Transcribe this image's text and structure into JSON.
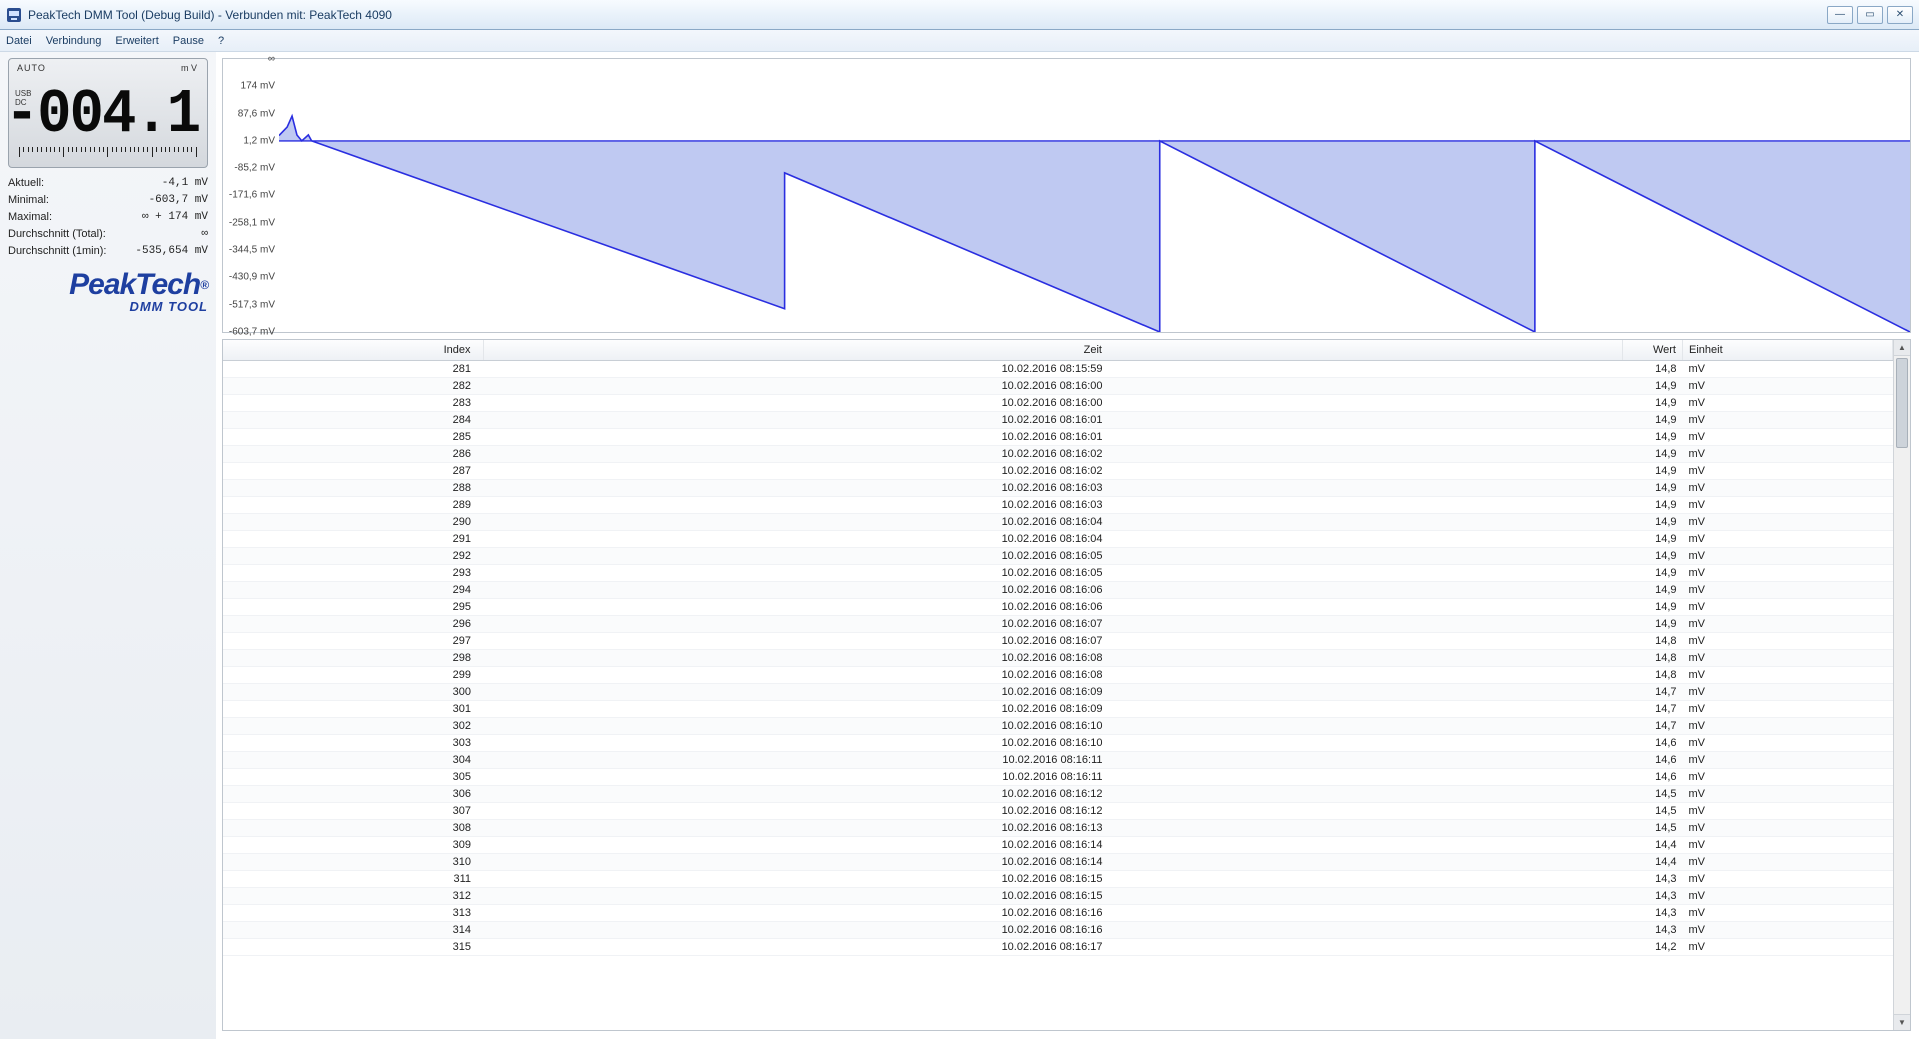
{
  "window": {
    "title": "PeakTech DMM Tool (Debug Build) - Verbunden mit: PeakTech 4090",
    "minimize": "—",
    "maximize": "▭",
    "close": "✕"
  },
  "menu": {
    "datei": "Datei",
    "verbindung": "Verbindung",
    "erweitert": "Erweitert",
    "pause": "Pause",
    "help": "?"
  },
  "lcd": {
    "mode": "AUTO",
    "unit": "m V",
    "conn1": "USB",
    "conn2": "DC",
    "value": "-004.1"
  },
  "stats": {
    "aktuell_lbl": "Aktuell:",
    "aktuell_val": "-4,1 mV",
    "minimal_lbl": "Minimal:",
    "minimal_val": "-603,7 mV",
    "maximal_lbl": "Maximal:",
    "maximal_val": "∞ + 174 mV",
    "durch_lbl": "Durchschnitt (Total):",
    "durch_val": "∞",
    "durch1_lbl": "Durchschnitt (1min):",
    "durch1_val": "-535,654 mV"
  },
  "logo": {
    "brand": "PeakTech",
    "reg": "®",
    "sub": "DMM TOOL"
  },
  "chart": {
    "type": "area-sawtooth",
    "y_min": -603.7,
    "y_max": 260.4,
    "baseline": 1.2,
    "y_ticks": [
      {
        "v": 260.4,
        "label": "∞"
      },
      {
        "v": 174,
        "label": "174 mV"
      },
      {
        "v": 87.6,
        "label": "87,6 mV"
      },
      {
        "v": 1.2,
        "label": "1,2 mV"
      },
      {
        "v": -85.2,
        "label": "-85,2 mV"
      },
      {
        "v": -171.6,
        "label": "-171,6 mV"
      },
      {
        "v": -258.1,
        "label": "-258,1 mV"
      },
      {
        "v": -344.5,
        "label": "-344,5 mV"
      },
      {
        "v": -430.9,
        "label": "-430,9 mV"
      },
      {
        "v": -517.3,
        "label": "-517,3 mV"
      },
      {
        "v": -603.7,
        "label": "-603,7 mV"
      }
    ],
    "points": [
      [
        0,
        18
      ],
      [
        0.005,
        45
      ],
      [
        0.008,
        80
      ],
      [
        0.011,
        20
      ],
      [
        0.014,
        1.2
      ],
      [
        0.018,
        20
      ],
      [
        0.02,
        1.2
      ],
      [
        0.31,
        -530
      ],
      [
        0.31,
        -100
      ],
      [
        0.54,
        -603.7
      ],
      [
        0.54,
        1.2
      ],
      [
        0.77,
        -603.7
      ],
      [
        0.77,
        1.2
      ],
      [
        1.0,
        -603.7
      ]
    ],
    "line_color": "#2a2ee0",
    "fill_color": "#b4bff0",
    "fill_opacity": 0.85,
    "line_width": 1.2,
    "border_color": "#9aa3ad",
    "bg_color": "#ffffff"
  },
  "table": {
    "headers": {
      "index": "Index",
      "zeit": "Zeit",
      "wert": "Wert",
      "einheit": "Einheit"
    },
    "rows": [
      {
        "i": "281",
        "z": "10.02.2016 08:15:59",
        "w": "14,8",
        "e": "mV"
      },
      {
        "i": "282",
        "z": "10.02.2016 08:16:00",
        "w": "14,9",
        "e": "mV"
      },
      {
        "i": "283",
        "z": "10.02.2016 08:16:00",
        "w": "14,9",
        "e": "mV"
      },
      {
        "i": "284",
        "z": "10.02.2016 08:16:01",
        "w": "14,9",
        "e": "mV"
      },
      {
        "i": "285",
        "z": "10.02.2016 08:16:01",
        "w": "14,9",
        "e": "mV"
      },
      {
        "i": "286",
        "z": "10.02.2016 08:16:02",
        "w": "14,9",
        "e": "mV"
      },
      {
        "i": "287",
        "z": "10.02.2016 08:16:02",
        "w": "14,9",
        "e": "mV"
      },
      {
        "i": "288",
        "z": "10.02.2016 08:16:03",
        "w": "14,9",
        "e": "mV"
      },
      {
        "i": "289",
        "z": "10.02.2016 08:16:03",
        "w": "14,9",
        "e": "mV"
      },
      {
        "i": "290",
        "z": "10.02.2016 08:16:04",
        "w": "14,9",
        "e": "mV"
      },
      {
        "i": "291",
        "z": "10.02.2016 08:16:04",
        "w": "14,9",
        "e": "mV"
      },
      {
        "i": "292",
        "z": "10.02.2016 08:16:05",
        "w": "14,9",
        "e": "mV"
      },
      {
        "i": "293",
        "z": "10.02.2016 08:16:05",
        "w": "14,9",
        "e": "mV"
      },
      {
        "i": "294",
        "z": "10.02.2016 08:16:06",
        "w": "14,9",
        "e": "mV"
      },
      {
        "i": "295",
        "z": "10.02.2016 08:16:06",
        "w": "14,9",
        "e": "mV"
      },
      {
        "i": "296",
        "z": "10.02.2016 08:16:07",
        "w": "14,9",
        "e": "mV"
      },
      {
        "i": "297",
        "z": "10.02.2016 08:16:07",
        "w": "14,8",
        "e": "mV"
      },
      {
        "i": "298",
        "z": "10.02.2016 08:16:08",
        "w": "14,8",
        "e": "mV"
      },
      {
        "i": "299",
        "z": "10.02.2016 08:16:08",
        "w": "14,8",
        "e": "mV"
      },
      {
        "i": "300",
        "z": "10.02.2016 08:16:09",
        "w": "14,7",
        "e": "mV"
      },
      {
        "i": "301",
        "z": "10.02.2016 08:16:09",
        "w": "14,7",
        "e": "mV"
      },
      {
        "i": "302",
        "z": "10.02.2016 08:16:10",
        "w": "14,7",
        "e": "mV"
      },
      {
        "i": "303",
        "z": "10.02.2016 08:16:10",
        "w": "14,6",
        "e": "mV"
      },
      {
        "i": "304",
        "z": "10.02.2016 08:16:11",
        "w": "14,6",
        "e": "mV"
      },
      {
        "i": "305",
        "z": "10.02.2016 08:16:11",
        "w": "14,6",
        "e": "mV"
      },
      {
        "i": "306",
        "z": "10.02.2016 08:16:12",
        "w": "14,5",
        "e": "mV"
      },
      {
        "i": "307",
        "z": "10.02.2016 08:16:12",
        "w": "14,5",
        "e": "mV"
      },
      {
        "i": "308",
        "z": "10.02.2016 08:16:13",
        "w": "14,5",
        "e": "mV"
      },
      {
        "i": "309",
        "z": "10.02.2016 08:16:14",
        "w": "14,4",
        "e": "mV"
      },
      {
        "i": "310",
        "z": "10.02.2016 08:16:14",
        "w": "14,4",
        "e": "mV"
      },
      {
        "i": "311",
        "z": "10.02.2016 08:16:15",
        "w": "14,3",
        "e": "mV"
      },
      {
        "i": "312",
        "z": "10.02.2016 08:16:15",
        "w": "14,3",
        "e": "mV"
      },
      {
        "i": "313",
        "z": "10.02.2016 08:16:16",
        "w": "14,3",
        "e": "mV"
      },
      {
        "i": "314",
        "z": "10.02.2016 08:16:16",
        "w": "14,3",
        "e": "mV"
      },
      {
        "i": "315",
        "z": "10.02.2016 08:16:17",
        "w": "14,2",
        "e": "mV"
      }
    ]
  }
}
